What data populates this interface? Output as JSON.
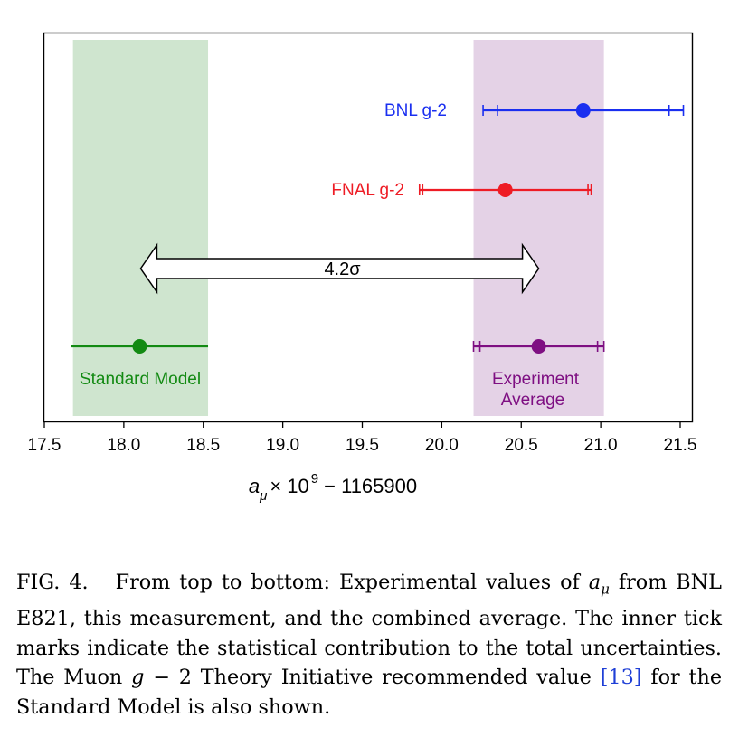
{
  "chart_data": {
    "type": "scatter",
    "subtype": "horizontal interval plot with error bars",
    "xlim": [
      17.5,
      21.6
    ],
    "xticks": [
      17.5,
      18.0,
      18.5,
      19.0,
      19.5,
      20.0,
      20.5,
      21.0,
      21.5
    ],
    "xtick_labels": [
      "17.5",
      "18.0",
      "18.5",
      "19.0",
      "19.5",
      "20.0",
      "20.5",
      "21.0",
      "21.5"
    ],
    "xlabel": {
      "a": "a",
      "sub": "μ",
      "times": "× 10",
      "sup": "9",
      "rest": "− 1165900"
    },
    "grid": false,
    "bands": [
      {
        "name": "Standard Model",
        "xmin": 17.68,
        "xmax": 18.53,
        "color": "#cfe5cf"
      },
      {
        "name": "Experiment Average",
        "xmin": 20.2,
        "xmax": 21.02,
        "color": "#e4d2e6"
      }
    ],
    "series": [
      {
        "name": "BNL g-2",
        "value": 20.89,
        "total_err_low": 0.63,
        "total_err_high": 0.63,
        "stat_ticks": [
          20.35,
          21.43
        ],
        "color": "#1a2ff0",
        "label_position": "left"
      },
      {
        "name": "FNAL g-2",
        "value": 20.4,
        "total_err_low": 0.54,
        "total_err_high": 0.54,
        "stat_ticks": [
          19.88,
          20.92
        ],
        "color": "#ee1c25",
        "label_position": "left"
      },
      {
        "name": "Standard Model",
        "value": 18.1,
        "total_err_low": 0.43,
        "total_err_high": 0.43,
        "stat_ticks": [],
        "color": "#138a13",
        "label_position": "below"
      },
      {
        "name": "Experiment Average",
        "value": 20.61,
        "total_err_low": 0.41,
        "total_err_high": 0.41,
        "stat_ticks": [
          20.24,
          20.98
        ],
        "color": "#7e0f82",
        "label_position": "below"
      }
    ],
    "labels": {
      "bnl": "BNL g-2",
      "fnal": "FNAL g-2",
      "sm": "Standard Model",
      "avg_line1": "Experiment",
      "avg_line2": "Average"
    },
    "annotation": {
      "text": "4.2σ",
      "from": 18.1,
      "to": 20.61,
      "type": "double-arrow"
    }
  },
  "caption": {
    "prefix": "FIG. 4.",
    "text1": "From top to bottom: Experimental values of",
    "a": "a",
    "sub": "μ",
    "text2": "from BNL E821, this measurement, and the combined average. The inner tick marks indicate the statistical contribution to the total uncertainties. The Muon",
    "g": "g",
    "text3": "− 2 Theory Initiative recommended value",
    "ref": "[13]",
    "text4": "for the Standard Model is also shown."
  }
}
